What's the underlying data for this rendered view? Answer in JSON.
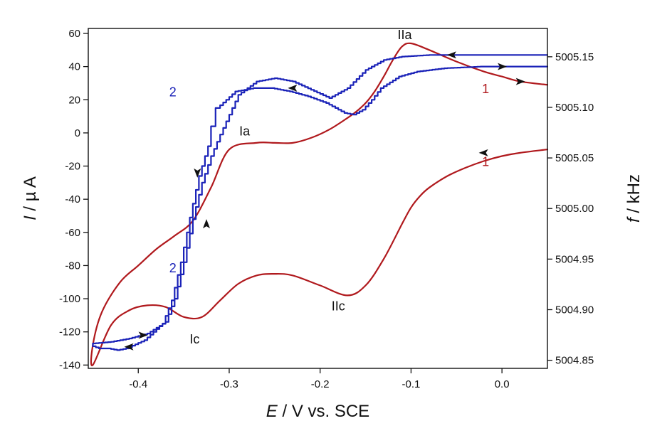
{
  "chart_data": {
    "type": "line",
    "xlabel": {
      "italic": "E",
      "rest": " / V vs. SCE"
    },
    "ylabel_left": {
      "italic": "I",
      "rest": " / µ A"
    },
    "ylabel_right": {
      "italic": "f",
      "rest": " / kHz"
    },
    "xlim": [
      -0.455,
      0.05
    ],
    "ylim_left": [
      -142,
      63
    ],
    "ylim_right": [
      5004.842,
      5005.178
    ],
    "x_ticks": [
      "-0.4",
      "-0.3",
      "-0.2",
      "-0.1",
      "0.0"
    ],
    "x_tick_values": [
      -0.4,
      -0.3,
      -0.2,
      -0.1,
      0.0
    ],
    "y_left_ticks": [
      "60",
      "40",
      "20",
      "0",
      "-20",
      "-40",
      "-60",
      "-80",
      "-100",
      "-120",
      "-140"
    ],
    "y_left_tick_values": [
      60,
      40,
      20,
      0,
      -20,
      -40,
      -60,
      -80,
      -100,
      -120,
      -140
    ],
    "y_right_ticks": [
      "5005.15",
      "5005.10",
      "5005.05",
      "5005.00",
      "5004.95",
      "5004.90",
      "5004.85"
    ],
    "y_right_tick_values": [
      5005.15,
      5005.1,
      5005.05,
      5005.0,
      5004.95,
      5004.9,
      5004.85
    ],
    "grid": false,
    "series": [
      {
        "id": "1",
        "axis": "left",
        "color": "#b0191d",
        "x": [
          0.05,
          0.02,
          0.0,
          -0.02,
          -0.04,
          -0.06,
          -0.08,
          -0.09,
          -0.1,
          -0.11,
          -0.13,
          -0.15,
          -0.17,
          -0.2,
          -0.23,
          -0.25,
          -0.27,
          -0.29,
          -0.31,
          -0.33,
          -0.35,
          -0.37,
          -0.39,
          -0.41,
          -0.43,
          -0.45,
          -0.45,
          -0.44,
          -0.42,
          -0.4,
          -0.38,
          -0.36,
          -0.34,
          -0.32,
          -0.3,
          -0.27,
          -0.25,
          -0.23,
          -0.21,
          -0.19,
          -0.17,
          -0.16,
          -0.15,
          -0.14,
          -0.13,
          -0.12,
          -0.11,
          -0.1,
          -0.08,
          -0.05,
          -0.02,
          0.0,
          0.02,
          0.05
        ],
        "y": [
          -10,
          -12,
          -14,
          -17,
          -21,
          -26,
          -33,
          -38,
          -45,
          -55,
          -76,
          -92,
          -98,
          -92,
          -86,
          -85,
          -86,
          -91,
          -101,
          -111,
          -111,
          -105,
          -104,
          -107,
          -116,
          -140,
          -128,
          -108,
          -90,
          -80,
          -70,
          -62,
          -53,
          -33,
          -10,
          -6,
          -6,
          -6,
          -3,
          2,
          9,
          13,
          18,
          25,
          34,
          44,
          52,
          54,
          50,
          43,
          37,
          34,
          31,
          29
        ]
      },
      {
        "id": "2",
        "axis": "left",
        "color": "#1a22b8",
        "x": [
          0.05,
          0.02,
          -0.02,
          -0.06,
          -0.09,
          -0.11,
          -0.13,
          -0.14,
          -0.15,
          -0.16,
          -0.17,
          -0.19,
          -0.21,
          -0.23,
          -0.25,
          -0.27,
          -0.29,
          -0.31,
          -0.315,
          -0.32,
          -0.33,
          -0.34,
          -0.35,
          -0.36,
          -0.37,
          -0.39,
          -0.41,
          -0.42,
          -0.43,
          -0.44,
          -0.45,
          -0.45,
          -0.43,
          -0.41,
          -0.39,
          -0.37,
          -0.36,
          -0.35,
          -0.34,
          -0.33,
          -0.32,
          -0.31,
          -0.3,
          -0.29,
          -0.27,
          -0.25,
          -0.23,
          -0.21,
          -0.19,
          -0.17,
          -0.15,
          -0.13,
          -0.11,
          -0.08,
          -0.04,
          0.0,
          0.05
        ],
        "y": [
          40,
          40,
          40,
          39,
          37,
          34,
          27,
          20,
          14,
          11,
          12,
          18,
          22,
          25,
          27,
          27,
          25,
          15,
          4,
          -8,
          -26,
          -51,
          -78,
          -101,
          -115,
          -125,
          -130,
          -131,
          -130,
          -130,
          -128,
          -127,
          -126,
          -124,
          -121,
          -114,
          -100,
          -78,
          -52,
          -30,
          -14,
          -1,
          11,
          23,
          31,
          33,
          31,
          26,
          21,
          27,
          38,
          44,
          46,
          47,
          47,
          47,
          47
        ]
      }
    ],
    "annotations": [
      {
        "text": "IIa",
        "x": -0.107,
        "y": 56.5,
        "color": "#111111"
      },
      {
        "text": "Ia",
        "x": -0.283,
        "y": -1.5,
        "color": "#111111"
      },
      {
        "text": "Ic",
        "x": -0.338,
        "y": -127,
        "color": "#111111"
      },
      {
        "text": "IIc",
        "x": -0.18,
        "y": -107,
        "color": "#111111"
      },
      {
        "text": "1",
        "x": -0.018,
        "y": 24,
        "color": "#b0191d"
      },
      {
        "text": "1",
        "x": -0.018,
        "y": -20,
        "color": "#b0191d"
      },
      {
        "text": "2",
        "x": -0.362,
        "y": 22,
        "color": "#1a22b8"
      },
      {
        "text": "2",
        "x": -0.362,
        "y": -84,
        "color": "#1a22b8"
      }
    ],
    "arrows": [
      {
        "x": -0.055,
        "y": 47,
        "dir": "left",
        "color": "#111111"
      },
      {
        "x": 0.0,
        "y": 40,
        "dir": "right",
        "color": "#111111"
      },
      {
        "x": 0.02,
        "y": 31,
        "dir": "right",
        "color": "#111111"
      },
      {
        "x": -0.02,
        "y": -12,
        "dir": "left",
        "color": "#111111"
      },
      {
        "x": -0.23,
        "y": 27,
        "dir": "left",
        "color": "#111111"
      },
      {
        "x": -0.335,
        "y": -24,
        "dir": "down",
        "color": "#111111"
      },
      {
        "x": -0.325,
        "y": -55,
        "dir": "up",
        "color": "#111111"
      },
      {
        "x": -0.395,
        "y": -122,
        "dir": "right",
        "color": "#111111"
      },
      {
        "x": -0.41,
        "y": -129,
        "dir": "left",
        "color": "#111111"
      }
    ]
  }
}
